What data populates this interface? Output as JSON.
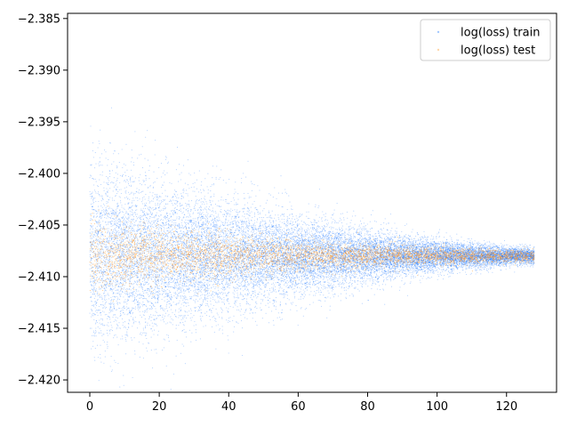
{
  "chart_data": {
    "type": "scatter",
    "title": "",
    "xlabel": "",
    "ylabel": "",
    "xlim": [
      -6.4,
      134.4
    ],
    "ylim": [
      -2.4212,
      -2.3845
    ],
    "x_ticks": [
      0,
      20,
      40,
      60,
      80,
      100,
      120
    ],
    "x_tick_labels": [
      "0",
      "20",
      "40",
      "60",
      "80",
      "100",
      "120"
    ],
    "y_ticks": [
      -2.385,
      -2.39,
      -2.395,
      -2.4,
      -2.405,
      -2.41,
      -2.415,
      -2.42
    ],
    "y_tick_labels": [
      "−2.385",
      "−2.390",
      "−2.395",
      "−2.400",
      "−2.405",
      "−2.410",
      "−2.415",
      "−2.420"
    ],
    "grid": false,
    "legend_position": "top-right",
    "series": [
      {
        "name": "log(loss) train",
        "color": "#1f77ff",
        "x_range": [
          0,
          128
        ],
        "center": -2.408,
        "spread_start": 0.0045,
        "spread_end": 0.0004,
        "approx_points": 20000
      },
      {
        "name": "log(loss) test",
        "color": "#ff9a2e",
        "x_range": [
          0,
          128
        ],
        "center": -2.408,
        "spread_start": 0.0016,
        "spread_end": 0.0003,
        "approx_points": 4500
      }
    ]
  }
}
